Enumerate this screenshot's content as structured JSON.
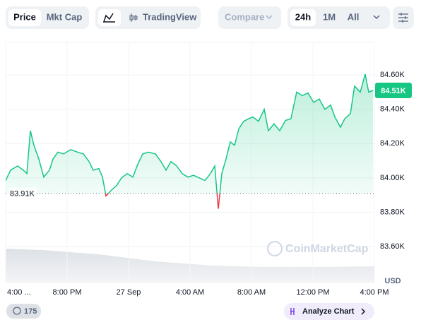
{
  "ui": {
    "tabs": [
      "Price",
      "Mkt Cap"
    ],
    "tradingview": "TradingView",
    "compare": "Compare",
    "ranges": [
      "24h",
      "1M",
      "All"
    ],
    "watermark": "CoinMarketCap",
    "currency": "USD",
    "badge": "175",
    "analyze": "Analyze Chart"
  },
  "chart_data": {
    "type": "line",
    "xlim": [
      0,
      24
    ],
    "xticks": [
      {
        "value": 0,
        "label": "4:00 ..."
      },
      {
        "value": 4,
        "label": "8:00 PM"
      },
      {
        "value": 8,
        "label": "27 Sep"
      },
      {
        "value": 12,
        "label": "4:00 AM"
      },
      {
        "value": 16,
        "label": "8:00 AM"
      },
      {
        "value": 20,
        "label": "12:00 PM"
      },
      {
        "value": 24,
        "label": "4:00 PM"
      }
    ],
    "ylim": [
      83390,
      84790
    ],
    "yticks": [
      {
        "value": 83600,
        "label": "83.60K"
      },
      {
        "value": 83800,
        "label": "83.80K"
      },
      {
        "value": 84000,
        "label": "84.00K"
      },
      {
        "value": 84200,
        "label": "84.20K"
      },
      {
        "value": 84400,
        "label": "84.40K"
      },
      {
        "value": 84600,
        "label": "84.60K"
      }
    ],
    "grid": true,
    "reference": {
      "value": 83910,
      "label": "83.91K",
      "color_above": "#16c784",
      "color_below": "#ea3943"
    },
    "current": {
      "value": 84510,
      "label": "84.51K"
    },
    "series": [
      {
        "color": "#16c784",
        "x": [
          0,
          0.32,
          0.78,
          1.15,
          1.38,
          1.61,
          1.84,
          2.16,
          2.48,
          2.85,
          3.08,
          3.4,
          3.77,
          4.23,
          4.69,
          5.06,
          5.43,
          5.7,
          6.07,
          6.3,
          6.53,
          6.9,
          7.22,
          7.54,
          7.91,
          8.28,
          8.6,
          8.92,
          9.29,
          9.75,
          10.11,
          10.44,
          10.76,
          11.13,
          11.49,
          11.86,
          12.23,
          12.6,
          12.97,
          13.33,
          13.61,
          13.84,
          14.07,
          14.34,
          14.62,
          14.9,
          15.17,
          15.49,
          15.82,
          16.09,
          16.46,
          16.83,
          17.1,
          17.47,
          17.84,
          18.21,
          18.57,
          18.94,
          19.31,
          19.68,
          20.05,
          20.41,
          20.78,
          21.15,
          21.43,
          21.79,
          22.07,
          22.44,
          22.71,
          23.08,
          23.4,
          23.63,
          23.91
        ],
        "values": [
          83985,
          84045,
          84070,
          84045,
          84025,
          84275,
          84190,
          84110,
          84005,
          84045,
          84110,
          84150,
          84140,
          84165,
          84150,
          84140,
          84095,
          84045,
          84055,
          84005,
          83895,
          83930,
          83955,
          84000,
          84025,
          84005,
          84080,
          84140,
          84150,
          84140,
          84095,
          84045,
          84095,
          84070,
          84025,
          84005,
          84015,
          84000,
          83985,
          84025,
          84070,
          83820,
          84025,
          84110,
          84210,
          84190,
          84285,
          84330,
          84345,
          84355,
          84330,
          84400,
          84275,
          84315,
          84275,
          84335,
          84345,
          84500,
          84480,
          84495,
          84440,
          84460,
          84400,
          84425,
          84355,
          84295,
          84345,
          84375,
          84535,
          84500,
          84605,
          84500,
          84510
        ]
      }
    ]
  }
}
